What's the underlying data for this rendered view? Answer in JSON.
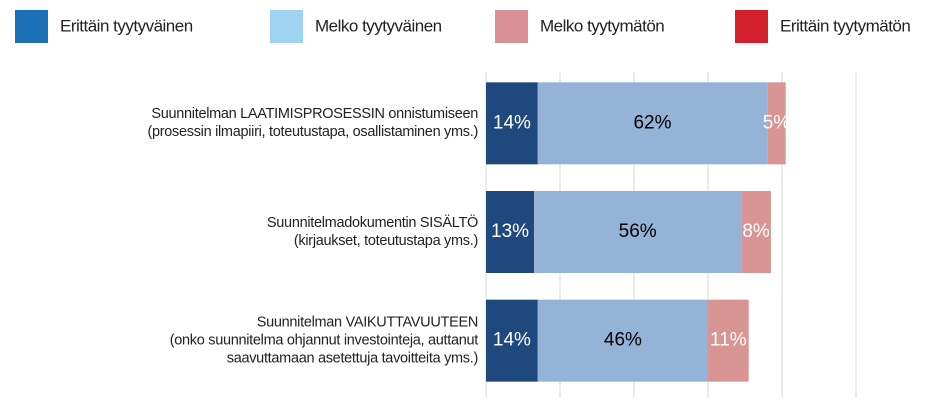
{
  "chart_data": {
    "type": "stacked-barh",
    "categories": [
      [
        "Suunnitelman LAATIMISPROSESSIN onnistumiseen",
        "(prosessin ilmapiiri, toteutustapa, osallistaminen yms.)"
      ],
      [
        "Suunnitelmadokumentin SISÄLTÖ",
        "(kirjaukset, toteutustapa yms.)"
      ],
      [
        "Suunnitelman VAIKUTTAVUUTEEN",
        "(onko suunnitelma ohjannut investointeja, auttanut",
        "saavuttamaan asetettuja tavoitteita yms.)"
      ]
    ],
    "series": [
      {
        "name": "Erittäin tyytyväinen",
        "color": "#1f497d",
        "legend_color": "#1a6fb5",
        "label_color": "#ffffff",
        "values": [
          14,
          13,
          14
        ],
        "value_labels": [
          "14%",
          "13%",
          "14%"
        ]
      },
      {
        "name": "Melko tyytyväinen",
        "color": "#95b3d7",
        "legend_color": "#9dd3f0",
        "label_color": "#000000",
        "values": [
          62,
          56,
          46
        ],
        "value_labels": [
          "62%",
          "56%",
          "46%"
        ]
      },
      {
        "name": "Melko tyytymätön",
        "color": "#d99594",
        "legend_color": "#d99196",
        "label_color": "#ffffff",
        "values": [
          5,
          8,
          11
        ],
        "value_labels": [
          "5%",
          "8%",
          "11%"
        ]
      },
      {
        "name": "Erittäin tyytymätön",
        "color": "#c0504d",
        "legend_color": "#d4202a",
        "label_color": "#ffffff",
        "values": [
          0,
          0,
          0
        ]
      }
    ],
    "xlim": [
      0,
      100
    ],
    "xticks": [
      0,
      20,
      40,
      60,
      80,
      100
    ],
    "grid": true,
    "legend": "top"
  }
}
